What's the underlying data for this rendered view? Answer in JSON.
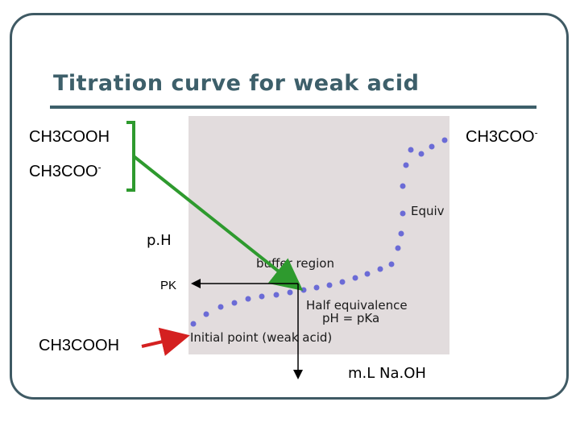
{
  "slide": {
    "title": "Titration curve for weak acid"
  },
  "labels": {
    "top_left_acid": "CH3COOH",
    "top_left_base": "CH3COO",
    "top_left_base_charge": "-",
    "top_right_base": "CH3COO",
    "top_right_base_charge": "-",
    "pk": "PK",
    "bottom_acid": "CH3COOH"
  },
  "plot": {
    "ylabel": "p.H",
    "xlabel": "m.L Na.OH",
    "annotations": {
      "equivalence": "Equiv",
      "buffer_region": "buffer region",
      "half_equivalence": "Half equivalence",
      "ph_pka": "pH = pKa",
      "initial_point": "Initial point (weak acid)"
    }
  },
  "colors": {
    "title": "#3d5f6a",
    "frame": "#3f5a64",
    "plot_background": "#e2dcdd",
    "curve_points": "#6b6bd6",
    "bracket_green": "#2e9a2e",
    "arrow_red": "#d42020",
    "guide_lines": "#000000"
  }
}
